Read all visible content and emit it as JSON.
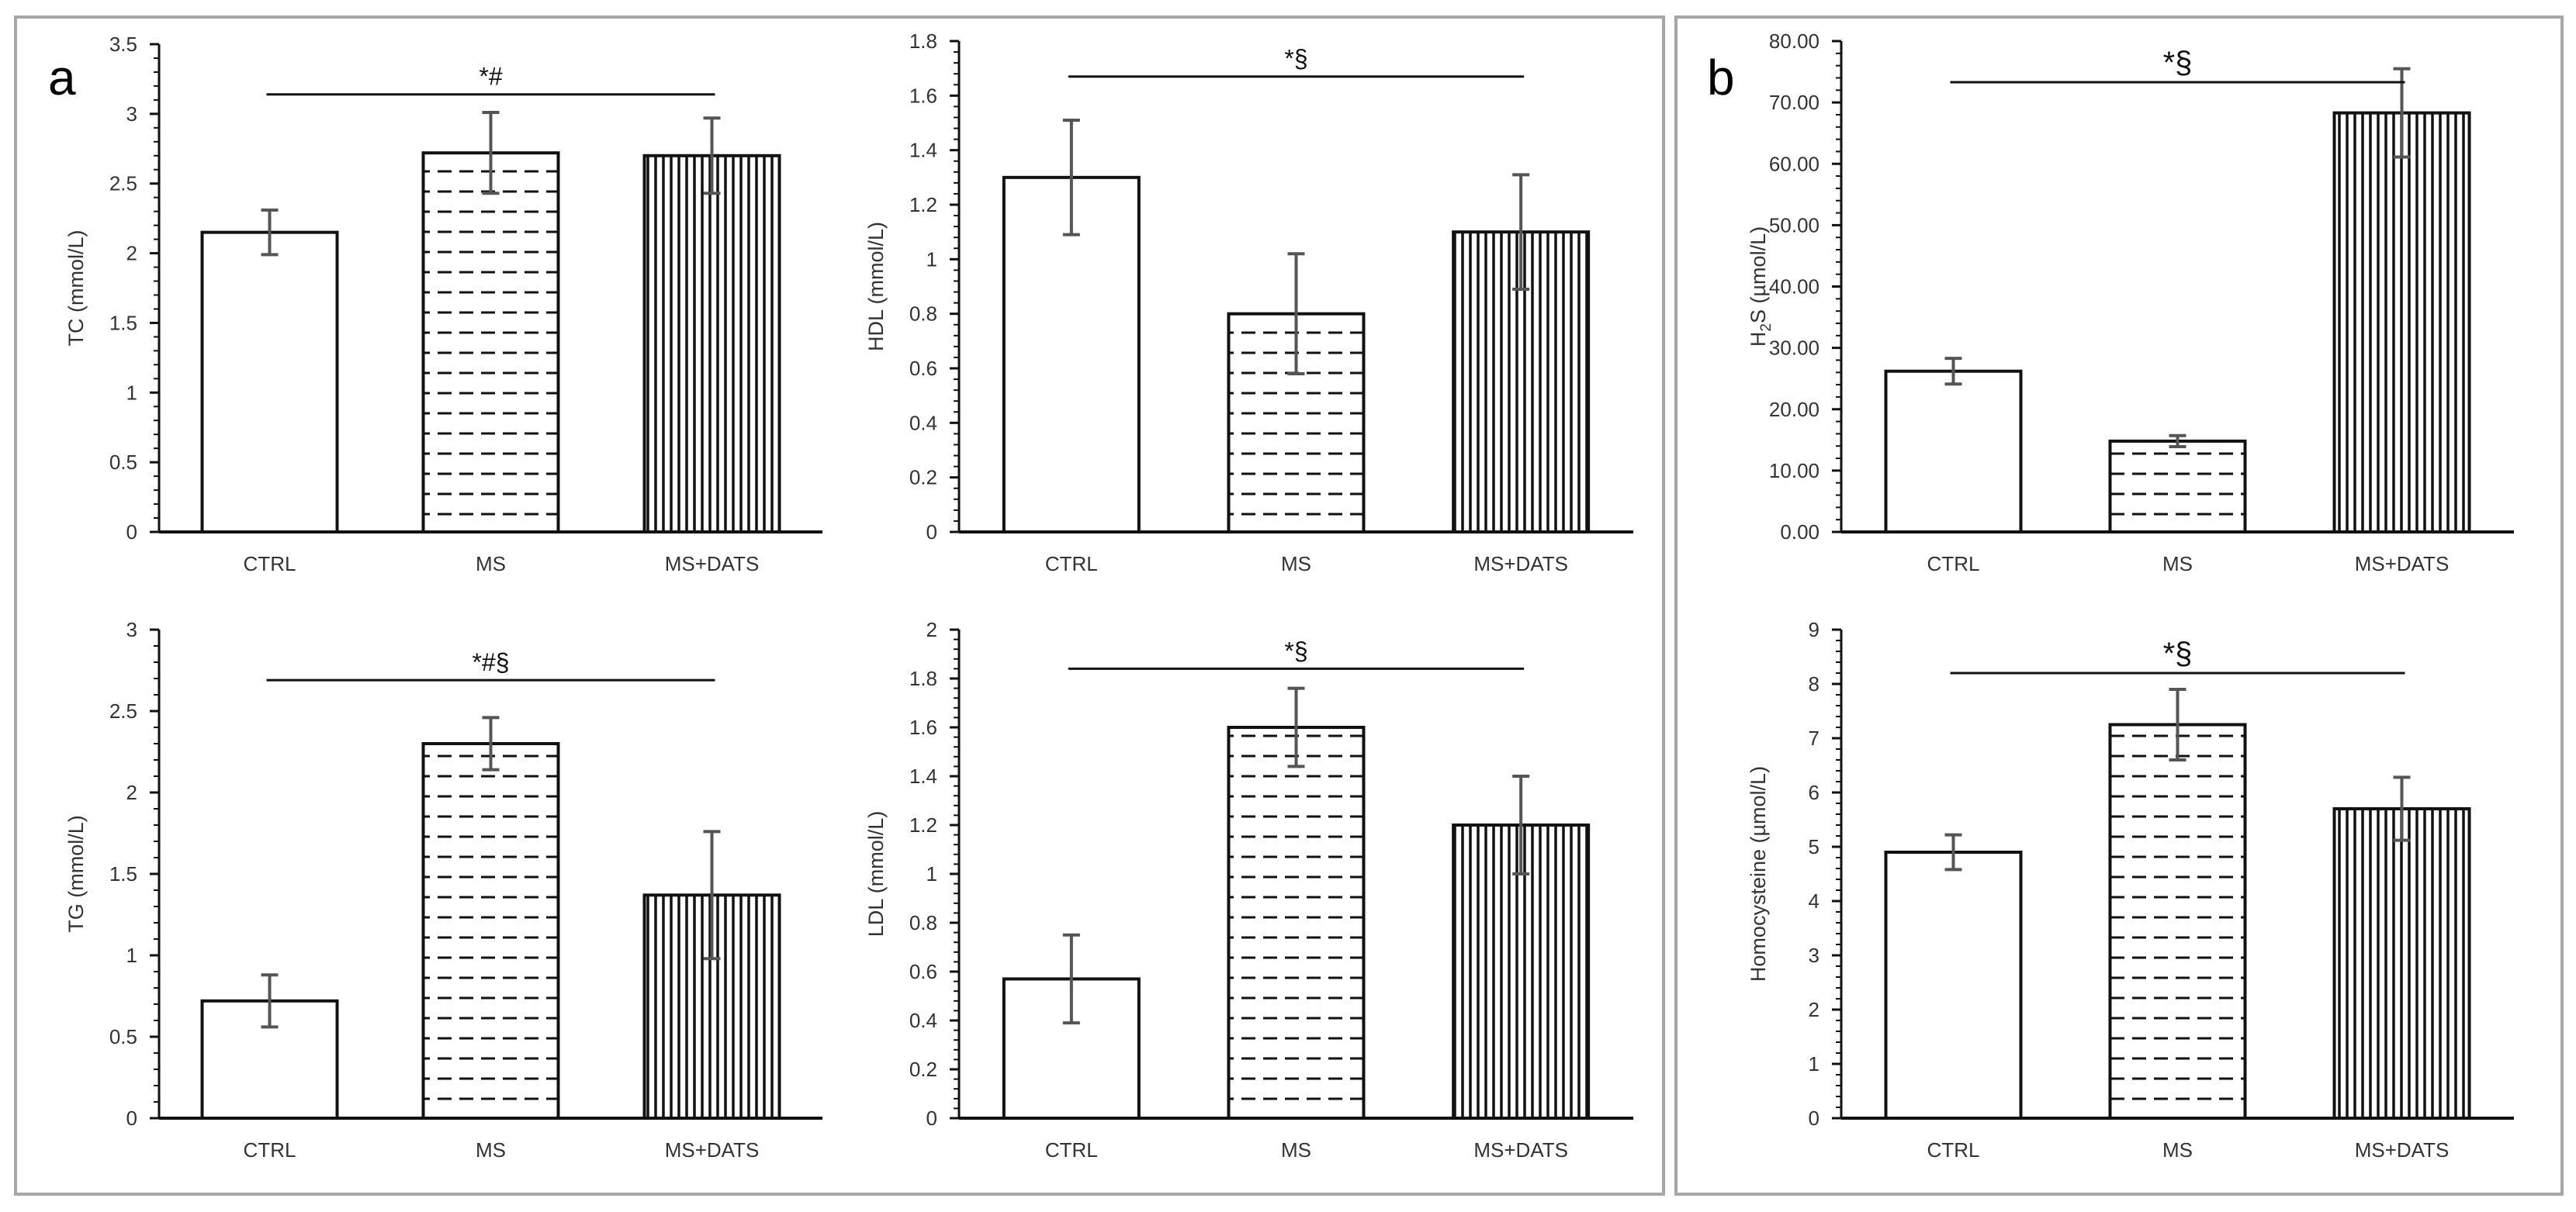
{
  "panels": [
    {
      "label": "a"
    },
    {
      "label": "b"
    }
  ],
  "chart_data": [
    {
      "type": "bar",
      "id": "tc",
      "panel": "a",
      "categories": [
        "CTRL",
        "MS",
        "MS+DATS"
      ],
      "values": [
        2.15,
        2.72,
        2.7
      ],
      "errors": [
        0.16,
        0.29,
        0.27
      ],
      "ylabel": "TC (mmol/L)",
      "ylim": [
        0,
        3.5
      ],
      "ytick_step": 0.5,
      "yticks": [
        "0",
        "0.5",
        "1",
        "1.5",
        "2",
        "2.5",
        "3",
        "3.5"
      ],
      "significance": {
        "text": "*#",
        "from": "CTRL",
        "to": "MS+DATS",
        "y": 3.14
      }
    },
    {
      "type": "bar",
      "id": "hdl",
      "panel": "a",
      "categories": [
        "CTRL",
        "MS",
        "MS+DATS"
      ],
      "values": [
        1.3,
        0.8,
        1.1
      ],
      "errors": [
        0.21,
        0.22,
        0.21
      ],
      "ylabel": "HDL (mmol/L)",
      "ylim": [
        0,
        1.8
      ],
      "ytick_step": 0.2,
      "yticks": [
        "0",
        "0.2",
        "0.4",
        "0.6",
        "0.8",
        "1",
        "1.2",
        "1.4",
        "1.6",
        "1.8"
      ],
      "significance": {
        "text": "*§",
        "from": "CTRL",
        "to": "MS+DATS",
        "y": 1.67
      }
    },
    {
      "type": "bar",
      "id": "h2s",
      "panel": "b",
      "categories": [
        "CTRL",
        "MS",
        "MS+DATS"
      ],
      "values": [
        26.2,
        14.8,
        68.3
      ],
      "errors": [
        2.1,
        0.9,
        7.2
      ],
      "ylabel": "H2S (µmol/L)",
      "ylabel_parts": {
        "main": "H",
        "sub": "2",
        "rest": "S (µmol/L)"
      },
      "ylim": [
        0,
        80
      ],
      "ytick_step": 10,
      "yticks": [
        "0.00",
        "10.00",
        "20.00",
        "30.00",
        "40.00",
        "50.00",
        "60.00",
        "70.00",
        "80.00"
      ],
      "significance": {
        "text": "*§",
        "from": "CTRL",
        "to": "MS+DATS",
        "y": 73.3
      }
    },
    {
      "type": "bar",
      "id": "tg",
      "panel": "a",
      "categories": [
        "CTRL",
        "MS",
        "MS+DATS"
      ],
      "values": [
        0.72,
        2.3,
        1.37
      ],
      "errors": [
        0.16,
        0.16,
        0.39
      ],
      "ylabel": "TG (mmol/L)",
      "ylim": [
        0,
        3
      ],
      "ytick_step": 0.5,
      "yticks": [
        "0",
        "0.5",
        "1",
        "1.5",
        "2",
        "2.5",
        "3"
      ],
      "significance": {
        "text": "*#§",
        "from": "CTRL",
        "to": "MS+DATS",
        "y": 2.69
      }
    },
    {
      "type": "bar",
      "id": "ldl",
      "panel": "a",
      "categories": [
        "CTRL",
        "MS",
        "MS+DATS"
      ],
      "values": [
        0.57,
        1.6,
        1.2
      ],
      "errors": [
        0.18,
        0.16,
        0.2
      ],
      "ylabel": "LDL (mmol/L)",
      "ylim": [
        0,
        2
      ],
      "ytick_step": 0.2,
      "yticks": [
        "0",
        "0.2",
        "0.4",
        "0.6",
        "0.8",
        "1",
        "1.2",
        "1.4",
        "1.6",
        "1.8",
        "2"
      ],
      "significance": {
        "text": "*§",
        "from": "CTRL",
        "to": "MS+DATS",
        "y": 1.84
      }
    },
    {
      "type": "bar",
      "id": "hcy",
      "panel": "b",
      "categories": [
        "CTRL",
        "MS",
        "MS+DATS"
      ],
      "values": [
        4.9,
        7.25,
        5.7
      ],
      "errors": [
        0.32,
        0.65,
        0.58
      ],
      "ylabel": "Homocysteine (µmol/L)",
      "ylim": [
        0,
        9
      ],
      "ytick_step": 1,
      "yticks": [
        "0",
        "1",
        "2",
        "3",
        "4",
        "5",
        "6",
        "7",
        "8",
        "9"
      ],
      "significance": {
        "text": "*§",
        "from": "CTRL",
        "to": "MS+DATS",
        "y": 8.2
      }
    }
  ],
  "colors": {
    "bar_stroke": "#111111",
    "bar_fill": "#ffffff",
    "error_bar": "#555555",
    "panel_border": "#a6a6a6",
    "text": "#333333"
  }
}
